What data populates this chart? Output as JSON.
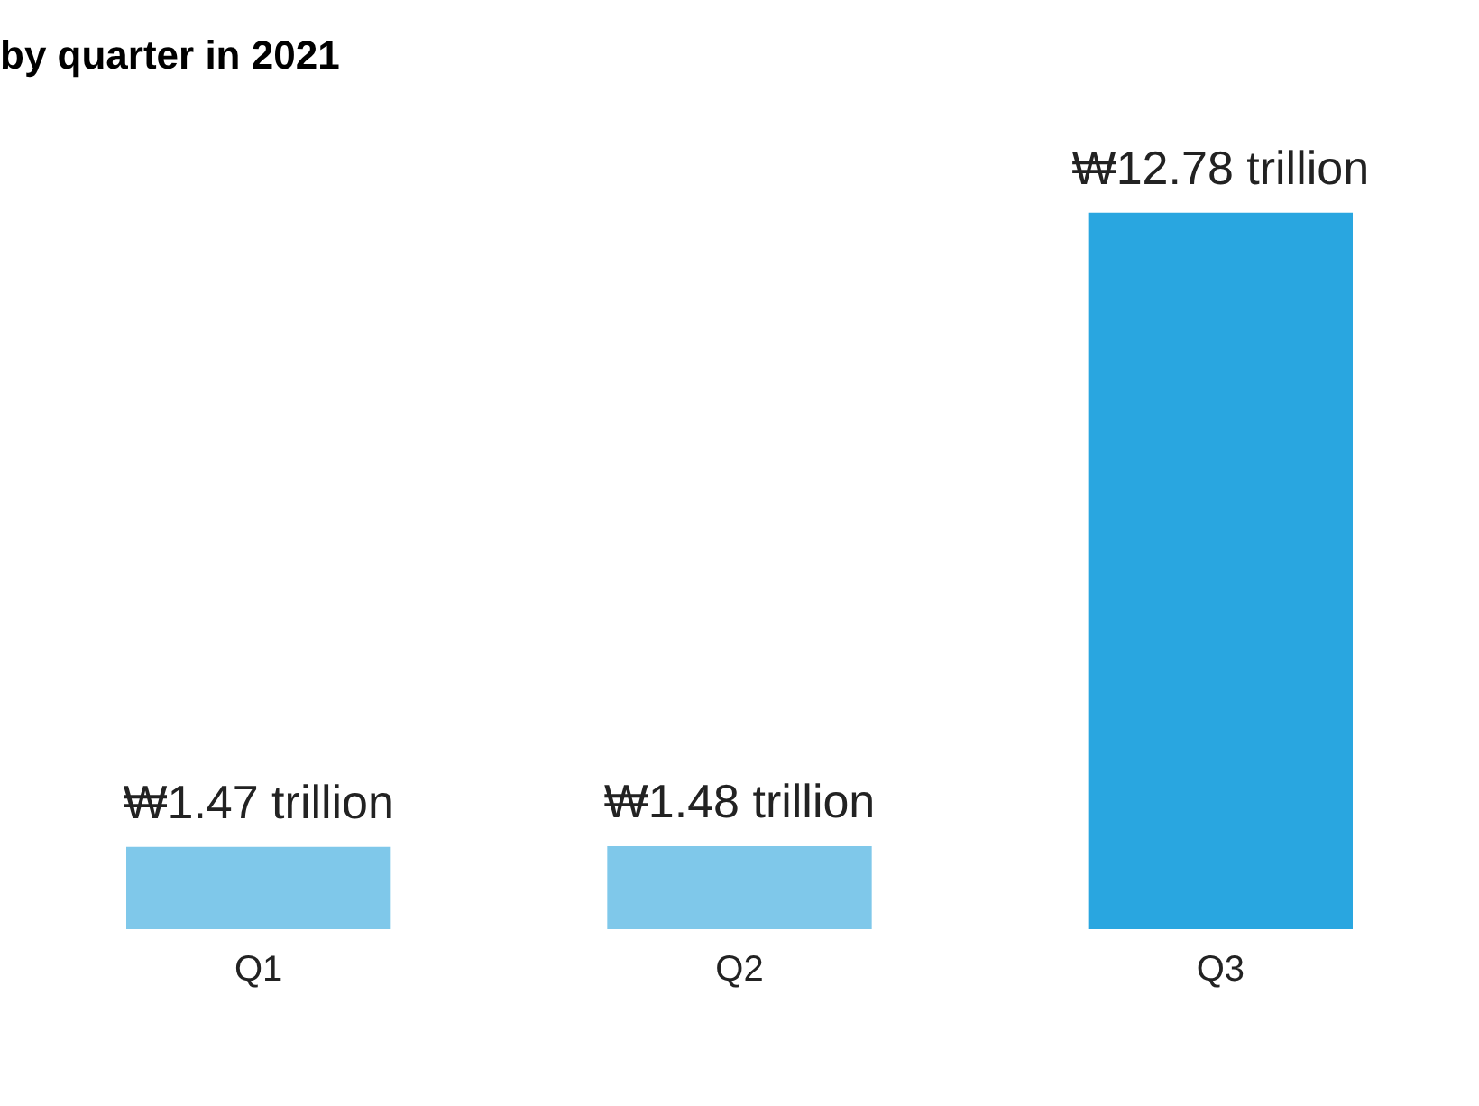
{
  "chart_data": {
    "type": "bar",
    "title": "by quarter in 2021",
    "categories": [
      "Q1",
      "Q2",
      "Q3"
    ],
    "values": [
      1.47,
      1.48,
      12.78
    ],
    "colors": [
      "#7fc8ea",
      "#7fc8ea",
      "#29a6e0"
    ],
    "value_labels": [
      "₩1.47 trillion",
      "₩1.48 trillion",
      "₩12.78 trillion"
    ],
    "grid": false,
    "legend": false
  }
}
